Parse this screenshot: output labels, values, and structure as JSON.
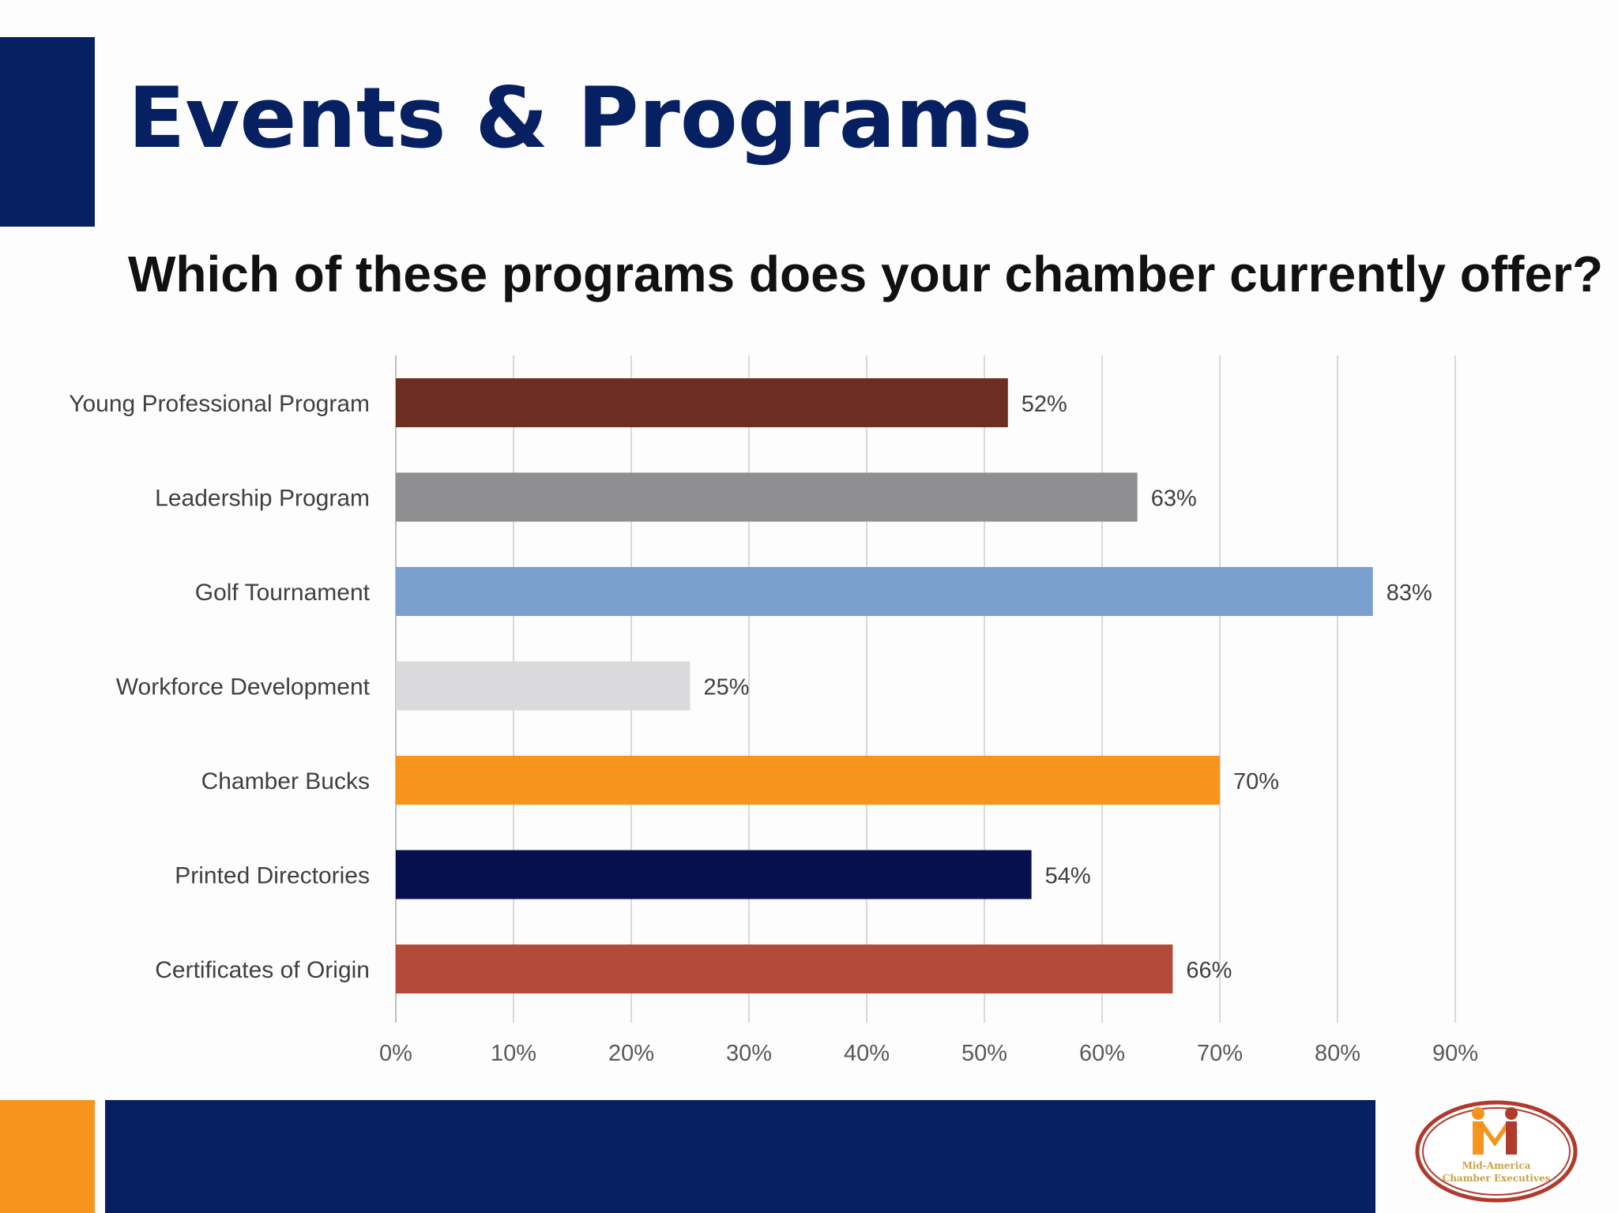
{
  "title": "Events & Programs",
  "subtitle": "Which of these programs does your chamber currently offer?",
  "chart_data": {
    "type": "bar",
    "orientation": "horizontal",
    "categories": [
      "Young Professional Program",
      "Leadership Program",
      "Golf Tournament",
      "Workforce Development",
      "Chamber Bucks",
      "Printed Directories",
      "Certificates of Origin"
    ],
    "values": [
      52,
      63,
      83,
      25,
      70,
      54,
      66
    ],
    "value_labels": [
      "52%",
      "63%",
      "83%",
      "25%",
      "70%",
      "54%",
      "66%"
    ],
    "bar_colors": [
      "#6b2e20",
      "#8f8e90",
      "#7ba0d0",
      "#dad9dc",
      "#f7941d",
      "#06104e",
      "#b44b3a"
    ],
    "xlim": [
      0,
      90
    ],
    "xticks": [
      0,
      10,
      20,
      30,
      40,
      50,
      60,
      70,
      80,
      90
    ],
    "xtick_labels": [
      "0%",
      "10%",
      "20%",
      "30%",
      "40%",
      "50%",
      "60%",
      "70%",
      "80%",
      "90%"
    ],
    "grid": "vertical"
  },
  "logo": {
    "line1": "Mid-America",
    "line2": "Chamber Executives"
  },
  "colors": {
    "navy": "#062062",
    "orange": "#f7941d",
    "logo_red": "#b03a2e"
  }
}
